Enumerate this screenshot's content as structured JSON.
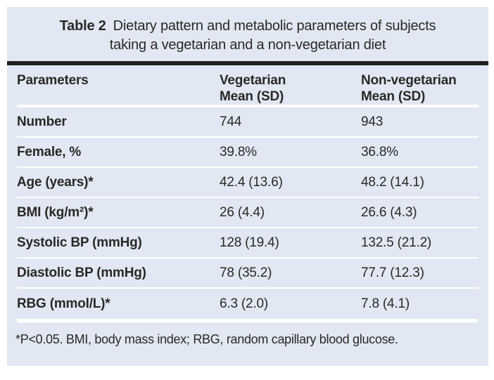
{
  "colors": {
    "page_background": "#ffffff",
    "card_background": "#e1e8f3",
    "title_rule": "#221f1f",
    "text": "#2b2826",
    "separator": "#ffffff"
  },
  "caption": {
    "label": "Table 2",
    "line1": "Dietary pattern and metabolic parameters of subjects",
    "line2": "taking a vegetarian and a non-vegetarian diet"
  },
  "header": {
    "columns": [
      {
        "title": "Parameters",
        "subtitle": ""
      },
      {
        "title": "Vegetarian",
        "subtitle": "Mean (SD)"
      },
      {
        "title": "Non-vegetarian",
        "subtitle": "Mean (SD)"
      }
    ]
  },
  "rows": [
    {
      "parameter": "Number",
      "vegetarian": "744",
      "non_vegetarian": "943"
    },
    {
      "parameter": "Female, %",
      "vegetarian": "39.8%",
      "non_vegetarian": "36.8%"
    },
    {
      "parameter": "Age (years)*",
      "vegetarian": "42.4 (13.6)",
      "non_vegetarian": "48.2 (14.1)"
    },
    {
      "parameter": "BMI (kg/m²)*",
      "vegetarian": "26 (4.4)",
      "non_vegetarian": "26.6 (4.3)"
    },
    {
      "parameter": "Systolic BP (mmHg)",
      "vegetarian": "128 (19.4)",
      "non_vegetarian": "132.5 (21.2)"
    },
    {
      "parameter": "Diastolic BP (mmHg)",
      "vegetarian": "78 (35.2)",
      "non_vegetarian": "77.7 (12.3)"
    },
    {
      "parameter": "RBG (mmol/L)*",
      "vegetarian": "6.3 (2.0)",
      "non_vegetarian": "7.8 (4.1)"
    }
  ],
  "footnote": "*P<0.05. BMI, body mass index; RBG, random capillary blood glucose."
}
